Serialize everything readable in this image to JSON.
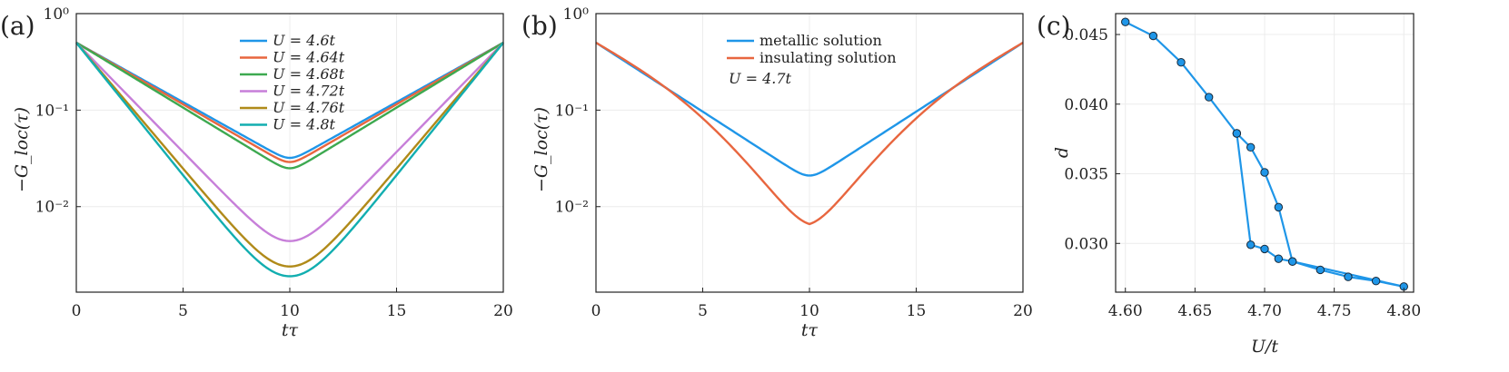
{
  "chart_data": [
    {
      "panel": "(a)",
      "type": "line",
      "yscale": "log",
      "xlabel": "tτ",
      "ylabel": "−G_loc(τ)",
      "xlim": [
        0,
        20
      ],
      "ylim": [
        0.0013,
        1
      ],
      "xticks": [
        "0",
        "5",
        "10",
        "15",
        "20"
      ],
      "yticks": [
        {
          "value": 1,
          "label": "10⁰"
        },
        {
          "value": 0.1,
          "label": "10⁻¹"
        },
        {
          "value": 0.01,
          "label": "10⁻²"
        }
      ],
      "legend_position": "top-center",
      "series": [
        {
          "name": "U = 4.6t",
          "color": "#1f96e8",
          "edge": 0.5,
          "mid": 0.032,
          "k": 2.2,
          "mod": 0.0
        },
        {
          "name": "U = 4.64t",
          "color": "#e8663f",
          "edge": 0.5,
          "mid": 0.029,
          "k": 2.2,
          "mod": 0.0
        },
        {
          "name": "U = 4.68t",
          "color": "#3da950",
          "edge": 0.5,
          "mid": 0.025,
          "k": 2.1,
          "mod": 0.0
        },
        {
          "name": "U = 4.72t",
          "color": "#c77fd9",
          "edge": 0.5,
          "mid": 0.0044,
          "k": 0.75,
          "mod": 0.0
        },
        {
          "name": "U = 4.76t",
          "color": "#b08a19",
          "edge": 0.5,
          "mid": 0.0024,
          "k": 0.62,
          "mod": 0.0
        },
        {
          "name": "U = 4.8t",
          "color": "#12aeb0",
          "edge": 0.5,
          "mid": 0.0019,
          "k": 0.58,
          "mod": 0.0
        }
      ]
    },
    {
      "panel": "(b)",
      "type": "line",
      "yscale": "log",
      "xlabel": "tτ",
      "ylabel": "−G_loc(τ)",
      "xlim": [
        0,
        20
      ],
      "ylim": [
        0.0013,
        1
      ],
      "xticks": [
        "0",
        "5",
        "10",
        "15",
        "20"
      ],
      "yticks": [
        {
          "value": 1,
          "label": "10⁰"
        },
        {
          "value": 0.1,
          "label": "10⁻¹"
        },
        {
          "value": 0.01,
          "label": "10⁻²"
        }
      ],
      "legend_position": "top-center",
      "annotation": "U = 4.7t",
      "series": [
        {
          "name": "metallic solution",
          "color": "#1f96e8",
          "edge": 0.5,
          "mid": 0.021,
          "k": 1.9,
          "mod": 0.0
        },
        {
          "name": "insulating solution",
          "color": "#e8663f",
          "edge": 0.5,
          "mid": 0.0066,
          "k": 1.0,
          "mod": 0.12
        }
      ]
    },
    {
      "panel": "(c)",
      "type": "line",
      "xlabel": "U/t",
      "ylabel": "d",
      "xlim": [
        4.593,
        4.807
      ],
      "ylim": [
        0.0265,
        0.0465
      ],
      "xticks": [
        "4.60",
        "4.65",
        "4.70",
        "4.75",
        "4.80"
      ],
      "yticks": [
        "0.030",
        "0.035",
        "0.040",
        "0.045"
      ],
      "series": [
        {
          "name": "d(U)",
          "color": "#1f96e8",
          "points": [
            [
              4.6,
              0.0459
            ],
            [
              4.62,
              0.0449
            ],
            [
              4.64,
              0.043
            ],
            [
              4.66,
              0.0405
            ],
            [
              4.68,
              0.0379
            ],
            [
              4.69,
              0.0299
            ],
            [
              4.7,
              0.0296
            ],
            [
              4.71,
              0.0289
            ],
            [
              4.72,
              0.0287
            ],
            [
              4.74,
              0.0281
            ],
            [
              4.76,
              0.0276
            ],
            [
              4.78,
              0.0273
            ],
            [
              4.8,
              0.0269
            ],
            [
              4.72,
              0.0287
            ],
            [
              4.71,
              0.0326
            ],
            [
              4.7,
              0.0351
            ],
            [
              4.69,
              0.0369
            ],
            [
              4.68,
              0.0379
            ]
          ]
        }
      ]
    }
  ]
}
